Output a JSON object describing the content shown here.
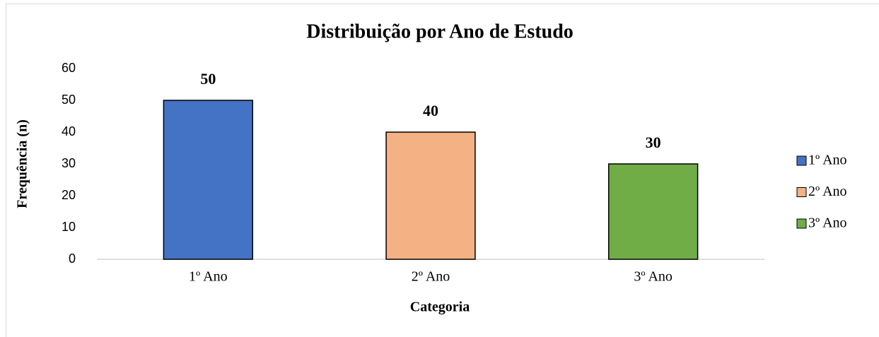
{
  "chart_data": {
    "type": "bar",
    "title": "Distribuição por Ano de Estudo",
    "x_label": "Categoria",
    "y_label": "Frequência (n)",
    "categories": [
      "1º Ano",
      "2º Ano",
      "3º Ano"
    ],
    "values": [
      50,
      40,
      30
    ],
    "colors": [
      "#4472c4",
      "#f4b183",
      "#70ad47"
    ],
    "ylim": [
      0,
      60
    ],
    "yticks": [
      0,
      10,
      20,
      30,
      40,
      50,
      60
    ],
    "grid": false,
    "legend": "right"
  }
}
